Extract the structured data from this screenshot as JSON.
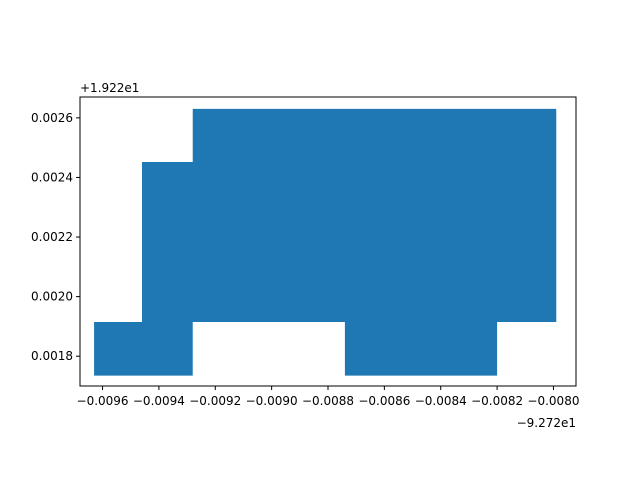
{
  "chart_data": {
    "type": "area",
    "title": "",
    "xlabel": "",
    "ylabel": "",
    "x_offset_label": "−9.272e1",
    "y_offset_label": "+1.922e1",
    "x_offset": -92.72,
    "y_offset": 19.22,
    "xlim": [
      -0.00968,
      -0.00792
    ],
    "ylim": [
      0.0017,
      0.00267
    ],
    "grid": false,
    "legend": "none",
    "fill_color": "#1f77b4",
    "x_ticks": [
      {
        "value": -0.0096,
        "label": "−0.0096"
      },
      {
        "value": -0.0094,
        "label": "−0.0094"
      },
      {
        "value": -0.0092,
        "label": "−0.0092"
      },
      {
        "value": -0.009,
        "label": "−0.0090"
      },
      {
        "value": -0.0088,
        "label": "−0.0088"
      },
      {
        "value": -0.0086,
        "label": "−0.0086"
      },
      {
        "value": -0.0084,
        "label": "−0.0084"
      },
      {
        "value": -0.0082,
        "label": "−0.0082"
      },
      {
        "value": -0.008,
        "label": "−0.0080"
      }
    ],
    "y_ticks": [
      {
        "value": 0.0018,
        "label": "0.0018"
      },
      {
        "value": 0.002,
        "label": "0.0020"
      },
      {
        "value": 0.0022,
        "label": "0.0022"
      },
      {
        "value": 0.0024,
        "label": "0.0024"
      },
      {
        "value": 0.0026,
        "label": "0.0026"
      }
    ],
    "polygons": [
      [
        [
          -0.00963,
          0.001735
        ],
        [
          -0.00963,
          0.001915
        ],
        [
          -0.00946,
          0.001915
        ],
        [
          -0.00946,
          0.002452
        ],
        [
          -0.00928,
          0.002452
        ],
        [
          -0.00928,
          0.00263
        ],
        [
          -0.00799,
          0.00263
        ],
        [
          -0.00799,
          0.001915
        ],
        [
          -0.0082,
          0.001915
        ],
        [
          -0.0082,
          0.001735
        ],
        [
          -0.00874,
          0.001735
        ],
        [
          -0.00874,
          0.001915
        ],
        [
          -0.00928,
          0.001915
        ],
        [
          -0.00928,
          0.001735
        ]
      ]
    ]
  }
}
